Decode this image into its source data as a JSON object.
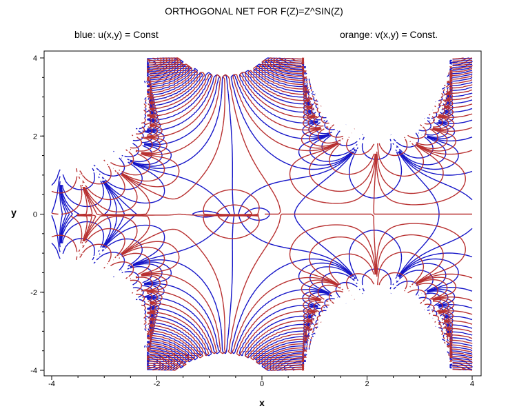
{
  "chart_data": {
    "type": "line",
    "title": "ORTHOGONAL NET FOR F(Z)=Z^SIN(Z)",
    "legend": {
      "blue": "blue:  u(x,y) = Const",
      "orange": "orange: v(x,y) = Const."
    },
    "xlabel": "x",
    "ylabel": "y",
    "xlim": [
      -4,
      4
    ],
    "ylim": [
      -4,
      4
    ],
    "xticks": [
      -4,
      -2,
      0,
      2,
      4
    ],
    "yticks": [
      -4,
      -2,
      0,
      2,
      4
    ],
    "xtick_labels": [
      "-4",
      "-2",
      "0",
      "2",
      "4"
    ],
    "ytick_labels": [
      "-4",
      "-2",
      "0",
      "2",
      "4"
    ],
    "grid": false,
    "colors": {
      "blue": "#1515c8",
      "orange": "#b83030"
    },
    "series": [
      {
        "name": "u(x,y) = Const",
        "color": "blue",
        "levels": [
          -3.0,
          -1.5,
          -0.7,
          -0.3,
          0.0,
          0.3,
          0.7,
          1.5,
          3.0
        ]
      },
      {
        "name": "v(x,y) = Const",
        "color": "orange",
        "levels": [
          -3.0,
          -1.5,
          -0.7,
          -0.3,
          0.0,
          0.3,
          0.7,
          1.5,
          3.0
        ]
      }
    ]
  }
}
